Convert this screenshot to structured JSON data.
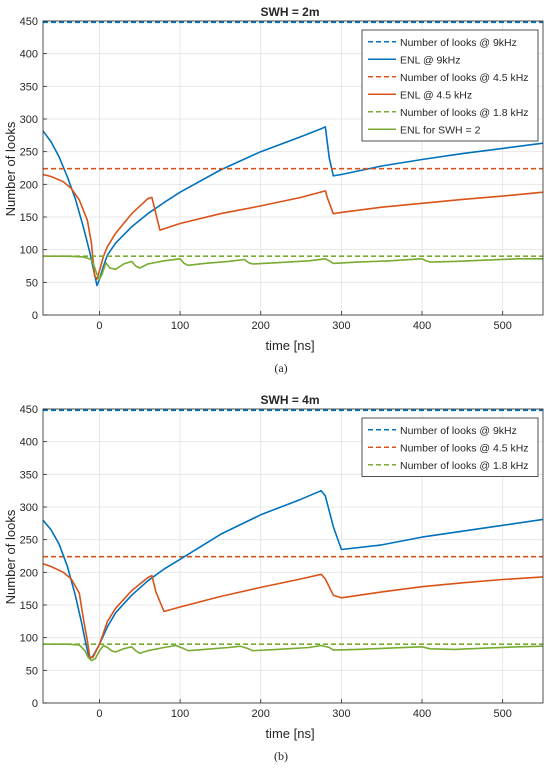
{
  "chart_data": [
    {
      "type": "line",
      "title": "SWH = 2m",
      "xlabel": "time [ns]",
      "ylabel": "Number of looks",
      "xlim": [
        -70,
        550
      ],
      "ylim": [
        0,
        450
      ],
      "xticks": [
        0,
        100,
        200,
        300,
        400,
        500
      ],
      "yticks": [
        0,
        50,
        100,
        150,
        200,
        250,
        300,
        350,
        400,
        450
      ],
      "grid": true,
      "legend_position": "top-right",
      "caption": "(a)",
      "series": [
        {
          "name": "Number of looks @ 9kHz",
          "color": "#0072BD",
          "dash": true,
          "x": [
            -70,
            550
          ],
          "y": [
            448,
            448
          ]
        },
        {
          "name": "ENL @ 9kHz",
          "color": "#0072BD",
          "dash": false,
          "x": [
            -70,
            -60,
            -50,
            -40,
            -30,
            -20,
            -12,
            -6,
            -3,
            0,
            5,
            10,
            20,
            40,
            60,
            80,
            100,
            150,
            200,
            250,
            275,
            280,
            285,
            290,
            300,
            350,
            400,
            450,
            500,
            550
          ],
          "y": [
            282,
            265,
            242,
            212,
            178,
            135,
            96,
            62,
            45,
            55,
            75,
            92,
            110,
            135,
            155,
            172,
            188,
            222,
            250,
            273,
            285,
            288,
            240,
            213,
            215,
            228,
            238,
            247,
            255,
            263
          ]
        },
        {
          "name": "Number of looks @ 4.5 kHz",
          "color": "#D95319",
          "dash": true,
          "x": [
            -70,
            550
          ],
          "y": [
            224,
            224
          ]
        },
        {
          "name": "ENL @ 4.5 kHz",
          "color": "#D95319",
          "dash": false,
          "x": [
            -70,
            -60,
            -45,
            -35,
            -25,
            -15,
            -10,
            -6,
            -3,
            0,
            5,
            10,
            20,
            40,
            60,
            65,
            70,
            75,
            100,
            150,
            200,
            250,
            280,
            283,
            290,
            300,
            350,
            400,
            450,
            500,
            550
          ],
          "y": [
            215,
            212,
            204,
            194,
            176,
            145,
            110,
            60,
            55,
            68,
            90,
            105,
            125,
            155,
            178,
            180,
            155,
            130,
            140,
            155,
            167,
            180,
            190,
            178,
            155,
            157,
            165,
            171,
            177,
            182,
            188
          ]
        },
        {
          "name": "Number of looks @ 1.8 kHz",
          "color": "#77AC30",
          "dash": true,
          "x": [
            -70,
            550
          ],
          "y": [
            90,
            90
          ]
        },
        {
          "name": "ENL for SWH = 2",
          "color": "#77AC30",
          "dash": false,
          "x": [
            -70,
            -40,
            -20,
            -10,
            -6,
            -3,
            0,
            3,
            8,
            13,
            20,
            30,
            40,
            45,
            50,
            60,
            80,
            100,
            105,
            110,
            130,
            160,
            180,
            185,
            190,
            220,
            260,
            280,
            285,
            290,
            320,
            360,
            400,
            405,
            410,
            440,
            480,
            520,
            550
          ],
          "y": [
            90,
            90,
            89,
            85,
            73,
            62,
            55,
            62,
            80,
            72,
            70,
            78,
            82,
            75,
            72,
            78,
            83,
            86,
            79,
            76,
            79,
            82,
            85,
            80,
            78,
            80,
            83,
            86,
            83,
            79,
            81,
            83,
            86,
            83,
            81,
            82,
            84,
            86,
            86
          ]
        }
      ]
    },
    {
      "type": "line",
      "title": "SWH = 4m",
      "xlabel": "time [ns]",
      "ylabel": "Number of looks",
      "xlim": [
        -70,
        550
      ],
      "ylim": [
        0,
        450
      ],
      "xticks": [
        0,
        100,
        200,
        300,
        400,
        500
      ],
      "yticks": [
        0,
        50,
        100,
        150,
        200,
        250,
        300,
        350,
        400,
        450
      ],
      "grid": true,
      "legend_position": "top-right",
      "caption": "(b)",
      "series": [
        {
          "name": "Number of looks @ 9kHz",
          "color": "#0072BD",
          "dash": true,
          "legend": true,
          "x": [
            -70,
            550
          ],
          "y": [
            448,
            448
          ]
        },
        {
          "name": "Number of looks @ 4.5 kHz",
          "color": "#D95319",
          "dash": true,
          "legend": true,
          "x": [
            -70,
            550
          ],
          "y": [
            224,
            224
          ]
        },
        {
          "name": "Number of looks @ 1.8 kHz",
          "color": "#77AC30",
          "dash": true,
          "legend": true,
          "x": [
            -70,
            550
          ],
          "y": [
            90,
            90
          ]
        },
        {
          "color": "#0072BD",
          "dash": false,
          "legend": false,
          "x": [
            -70,
            -60,
            -50,
            -40,
            -30,
            -22,
            -17,
            -14,
            -12,
            -8,
            0,
            10,
            20,
            40,
            60,
            80,
            100,
            150,
            200,
            250,
            275,
            280,
            290,
            300,
            350,
            400,
            450,
            500,
            550
          ],
          "y": [
            280,
            265,
            243,
            210,
            165,
            122,
            92,
            75,
            68,
            72,
            90,
            117,
            138,
            165,
            187,
            205,
            220,
            258,
            288,
            312,
            325,
            317,
            270,
            235,
            242,
            254,
            263,
            272,
            281
          ]
        },
        {
          "color": "#D95319",
          "dash": false,
          "legend": false,
          "x": [
            -70,
            -60,
            -45,
            -35,
            -25,
            -20,
            -15,
            -12,
            -8,
            0,
            10,
            20,
            40,
            60,
            65,
            70,
            80,
            100,
            150,
            200,
            250,
            275,
            280,
            290,
            300,
            350,
            400,
            450,
            500,
            550
          ],
          "y": [
            213,
            209,
            200,
            190,
            168,
            130,
            95,
            70,
            70,
            90,
            125,
            145,
            172,
            192,
            195,
            170,
            140,
            147,
            163,
            177,
            190,
            197,
            190,
            165,
            161,
            170,
            178,
            184,
            189,
            193
          ]
        },
        {
          "color": "#77AC30",
          "dash": false,
          "legend": false,
          "x": [
            -70,
            -40,
            -25,
            -18,
            -14,
            -10,
            -5,
            0,
            5,
            10,
            15,
            20,
            30,
            40,
            45,
            50,
            60,
            80,
            95,
            105,
            110,
            130,
            160,
            175,
            185,
            190,
            220,
            260,
            275,
            285,
            290,
            320,
            360,
            400,
            410,
            440,
            480,
            520,
            550
          ],
          "y": [
            90,
            90,
            89,
            80,
            70,
            65,
            68,
            80,
            88,
            85,
            80,
            78,
            83,
            86,
            80,
            76,
            80,
            85,
            88,
            83,
            80,
            82,
            85,
            87,
            83,
            80,
            82,
            85,
            88,
            85,
            81,
            82,
            84,
            86,
            83,
            82,
            84,
            86,
            87
          ]
        }
      ]
    }
  ]
}
